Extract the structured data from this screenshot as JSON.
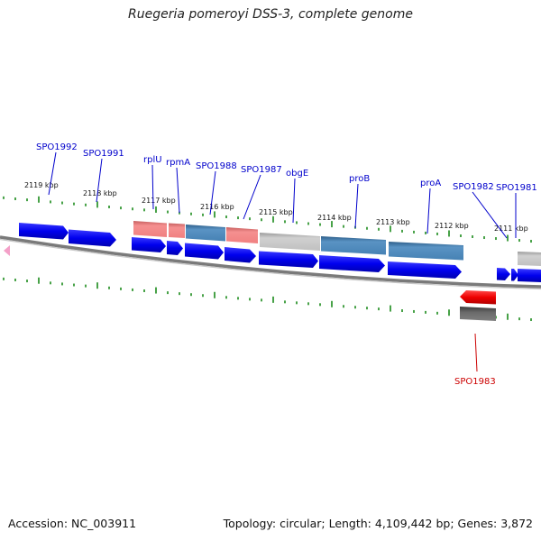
{
  "title": "Ruegeria pomeroyi DSS-3, complete genome",
  "footer": {
    "accession": "Accession: NC_003911",
    "summary": "Topology: circular; Length: 4,109,442 bp; Genes: 3,872"
  },
  "colors": {
    "label_forward": "#0000cc",
    "label_reverse": "#cc0000",
    "tick": "#1a8a1a",
    "cds": "#0000ee",
    "cds_reverse": "#ee0000",
    "cog_red": "#f08080",
    "cog_steel": "#4682b4",
    "cog_gray": "#c0c0c0",
    "cog_dark": "#606060",
    "backbone": "#7a7a7a"
  },
  "scale_labels": [
    "2119 kbp",
    "2118 kbp",
    "2117 kbp",
    "2116 kbp",
    "2115 kbp",
    "2114 kbp",
    "2113 kbp",
    "2112 kbp",
    "2111 kbp"
  ],
  "gene_labels": [
    {
      "text": "SPO1992",
      "strand": "forward"
    },
    {
      "text": "SPO1991",
      "strand": "forward"
    },
    {
      "text": "rplU",
      "strand": "forward"
    },
    {
      "text": "rpmA",
      "strand": "forward"
    },
    {
      "text": "SPO1988",
      "strand": "forward"
    },
    {
      "text": "SPO1987",
      "strand": "forward"
    },
    {
      "text": "obgE",
      "strand": "forward"
    },
    {
      "text": "proB",
      "strand": "forward"
    },
    {
      "text": "proA",
      "strand": "forward"
    },
    {
      "text": "SPO1982",
      "strand": "forward"
    },
    {
      "text": "SPO1981",
      "strand": "forward"
    },
    {
      "text": "SPO1983",
      "strand": "reverse"
    }
  ]
}
